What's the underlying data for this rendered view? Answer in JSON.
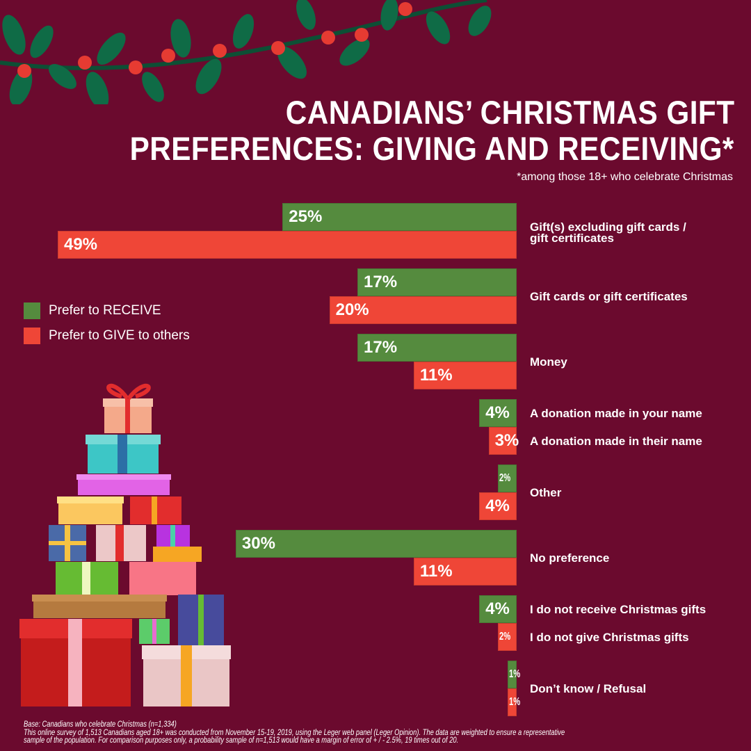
{
  "title_line1": "CANADIANS’ CHRISTMAS GIFT",
  "title_line2": "PREFERENCES: GIVING AND RECEIVING*",
  "subtitle": "*among those 18+ who celebrate Christmas",
  "legend": {
    "receive": "Prefer to RECEIVE",
    "give": "Prefer to GIVE to others"
  },
  "colors": {
    "receive": "#558b3e",
    "give": "#ef4637",
    "background": "#6b0a2e"
  },
  "footer": {
    "base": "Base: Canadians who celebrate Christmas (n=1,334)",
    "note1": "This online survey of 1,513 Canadians aged 18+ was conducted from November 15-19, 2019, using the Leger web panel (Leger Opinion). The data are weighted to ensure a representative",
    "note2": "sample of the population. For comparison purposes only, a probability sample of n=1,513 would have a margin of error of + / - 2.5%, 19 times out of 20."
  },
  "chart_data": {
    "type": "bar",
    "orientation": "horizontal",
    "title": "CANADIANS’ CHRISTMAS GIFT PREFERENCES: GIVING AND RECEIVING*",
    "categories": [
      "Gift(s) excluding gift cards / gift certificates",
      "Gift cards or gift certificates",
      "Money",
      "A donation made in your name / A donation made in their name",
      "Other",
      "No preference",
      "I do not receive Christmas gifts / I do not give Christmas gifts",
      "Don’t know / Refusal"
    ],
    "series": [
      {
        "name": "Prefer to RECEIVE",
        "values": [
          25,
          17,
          17,
          4,
          2,
          30,
          4,
          1
        ]
      },
      {
        "name": "Prefer to GIVE to others",
        "values": [
          49,
          20,
          11,
          3,
          4,
          11,
          2,
          1
        ]
      }
    ],
    "labels": [
      [
        "Gift(s) excluding gift cards /",
        "gift certificates"
      ],
      [
        "Gift cards or gift certificates"
      ],
      [
        "Money"
      ],
      [
        "A donation made in your name",
        "A donation made in their name"
      ],
      [
        "Other"
      ],
      [
        "No preference"
      ],
      [
        "I do not receive Christmas gifts",
        "I do not give Christmas gifts"
      ],
      [
        "Don’t know / Refusal"
      ]
    ],
    "unit": "%"
  }
}
